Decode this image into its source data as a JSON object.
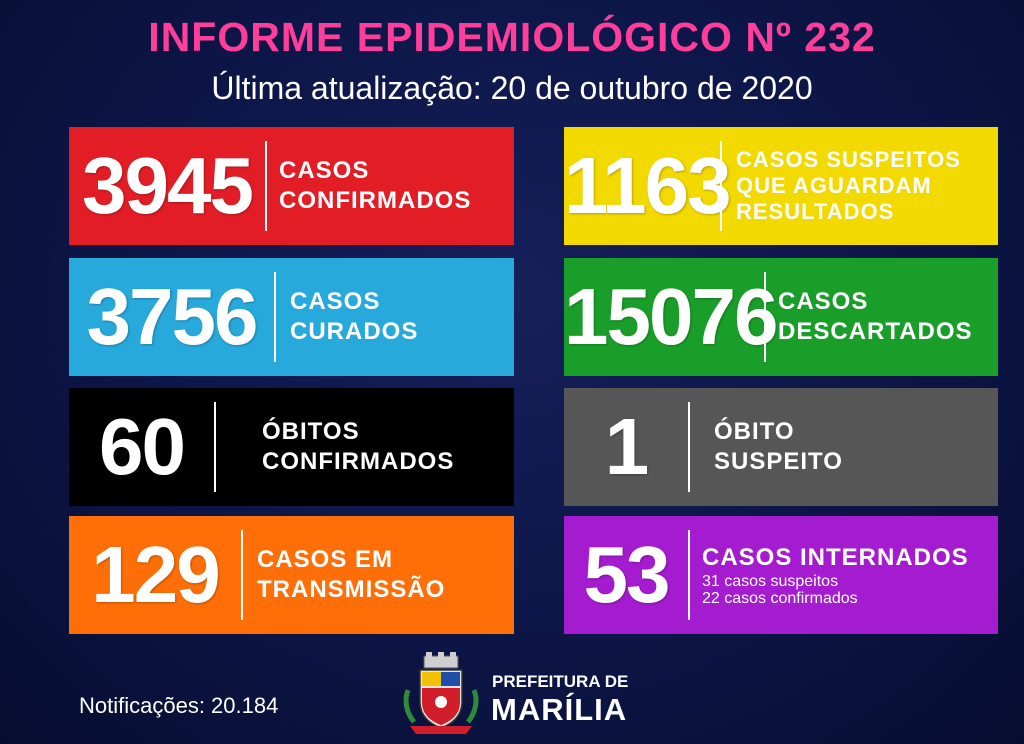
{
  "header": {
    "title": "INFORME EPIDEMIOLÓGICO Nº 232",
    "subtitle": "Última atualização: 20 de outubro de 2020"
  },
  "cards": {
    "confirmed": {
      "number": "3945",
      "line1": "CASOS",
      "line2": "CONFIRMADOS",
      "color": "#e21d26"
    },
    "suspected": {
      "number": "1163",
      "line1": "CASOS SUSPEITOS",
      "line2": "QUE AGUARDAM",
      "line3": "RESULTADOS",
      "color": "#f2d900"
    },
    "cured": {
      "number": "3756",
      "line1": "CASOS",
      "line2": "CURADOS",
      "color": "#27a9dc"
    },
    "discarded": {
      "number": "15076",
      "line1": "CASOS",
      "line2": "DESCARTADOS",
      "color": "#1a9e2a"
    },
    "deaths": {
      "number": "60",
      "line1": "ÓBITOS",
      "line2": "CONFIRMADOS",
      "color": "#000000"
    },
    "suspected_death": {
      "number": "1",
      "line1": "ÓBITO",
      "line2": "SUSPEITO",
      "color": "#565656"
    },
    "transmission": {
      "number": "129",
      "line1": "CASOS EM",
      "line2": "TRANSMISSÃO",
      "color": "#ff6e07"
    },
    "hospitalized": {
      "number": "53",
      "line1": "CASOS INTERNADOS",
      "line2": "31 casos suspeitos",
      "line3": "22 casos confirmados",
      "color": "#a51bcf"
    }
  },
  "footer": {
    "notifications": "Notificações: 20.184",
    "logo_icon": "coat-of-arms-icon",
    "pref_line1": "PREFEITURA DE",
    "pref_line2": "MARÍLIA"
  }
}
